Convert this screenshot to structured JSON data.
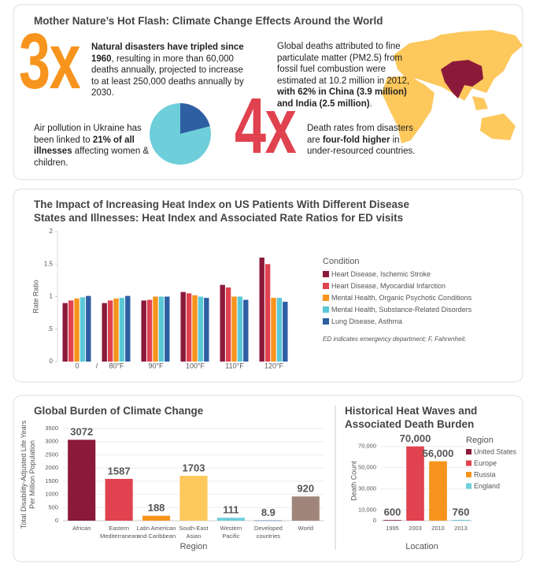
{
  "header": {
    "title": "Mother Nature’s Hot Flash: Climate Change Effects Around the World"
  },
  "stats": [
    {
      "big": "3x",
      "color": "#f7941d",
      "parts": [
        {
          "text": "Natural disasters have tripled since 1960",
          "bold": true
        },
        {
          "text": ", resulting in more than 60,000 deaths annually, projected to increase to at least 250,000 deaths annually by 2030."
        }
      ]
    },
    {
      "parts": [
        {
          "text": "Global deaths attributed to fine particulate matter (PM2.5) from fossil fuel combustion were estimated at 10.2 million in 2012, "
        },
        {
          "text": "with 62% in China (3.9 million) and India (2.5 million)",
          "bold": true
        },
        {
          "text": "."
        }
      ]
    },
    {
      "parts": [
        {
          "text": "Air pollution in Ukraine has been linked to "
        },
        {
          "text": "21% of all illnesses",
          "bold": true
        },
        {
          "text": " affecting women & children."
        }
      ]
    },
    {
      "big": "4x",
      "color": "#e0424f",
      "parts": [
        {
          "text": "Death rates from disasters are "
        },
        {
          "text": "four-fold higher",
          "bold": true
        },
        {
          "text": " in under-resourced countries."
        }
      ]
    }
  ],
  "chart_data": [
    {
      "type": "pie",
      "values": [
        21,
        79
      ],
      "colors": [
        "#2e5fa3",
        "#6ecfdb"
      ]
    },
    {
      "type": "grouped_bar",
      "title": "The Impact of Increasing Heat Index on US Patients With Different Disease States and Illnesses: Heat Index and Associated Rate Ratios for ED visits",
      "y_label": "Rate Ratio",
      "categories": [
        "0",
        "80°F",
        "90°F",
        "100°F",
        "110°F",
        "120°F"
      ],
      "x_break_label": "/",
      "ylim": [
        0,
        2
      ],
      "yticks": [
        0,
        {
          "value": 0.5,
          "label": ".5"
        },
        1,
        1.5,
        2
      ],
      "legend_title": "Condition",
      "series": [
        {
          "name": "Heart Disease, Ischemic Stroke",
          "color": "#8b1a3a",
          "values": [
            0.9,
            0.9,
            0.94,
            1.07,
            1.18,
            1.6
          ]
        },
        {
          "name": "Heart Disease, Myocardial Infarction",
          "color": "#e0424f",
          "values": [
            0.94,
            0.94,
            0.95,
            1.05,
            1.14,
            1.5
          ]
        },
        {
          "name": "Mental Health, Organic Psychotic Conditions",
          "color": "#f7941d",
          "values": [
            0.97,
            0.97,
            1.0,
            1.02,
            1.0,
            0.98
          ]
        },
        {
          "name": "Mental Health, Substance-Related Disorders",
          "color": "#5bc8d6",
          "values": [
            0.99,
            0.98,
            1.0,
            1.0,
            1.0,
            0.98
          ]
        },
        {
          "name": "Lung Disease, Asthma",
          "color": "#2e5fa3",
          "values": [
            1.01,
            1.01,
            1.0,
            0.98,
            0.95,
            0.92
          ]
        }
      ],
      "note": "ED indicates emergency department; F, Fahrenheit."
    },
    {
      "type": "bar",
      "title": "Global Burden of Climate Change",
      "y_label": [
        "Total Disability-Adjusted Life Years",
        "Per Million Population"
      ],
      "x_label": "Region",
      "categories": [
        [
          "African"
        ],
        [
          "Eastern",
          "Mediterranean"
        ],
        [
          "Latin American",
          "and Caribbean"
        ],
        [
          "South-East",
          "Asian"
        ],
        [
          "Western",
          "Pacific"
        ],
        [
          "Developed",
          "countries"
        ],
        [
          "World"
        ]
      ],
      "values": [
        3072,
        1587,
        188,
        1703,
        111,
        8.9,
        920
      ],
      "colors": [
        "#8b1a3a",
        "#e0424f",
        "#f7941d",
        "#fdc85c",
        "#6ecfdb",
        "#2e5fa3",
        "#a0867a"
      ],
      "ylim": [
        0,
        3500
      ],
      "yticks": [
        0,
        500,
        1000,
        1500,
        2000,
        2500,
        3000,
        3500
      ],
      "grid": true
    },
    {
      "type": "bar",
      "title": "Historical Heat Waves and Associated Death Burden",
      "y_label": [
        "Death Count"
      ],
      "x_label": "Location",
      "categories": [
        [
          "1995"
        ],
        [
          "2003"
        ],
        [
          "2010"
        ],
        [
          "2013"
        ]
      ],
      "values": [
        600,
        70000,
        56000,
        760
      ],
      "value_labels": [
        "600",
        "70,000",
        "56,000",
        "760"
      ],
      "colors": [
        "#8b1a3a",
        "#e0424f",
        "#f7941d",
        "#6ecfdb"
      ],
      "ylim": [
        0,
        75000
      ],
      "yticks": [
        0,
        {
          "value": 10000,
          "label": "10,000"
        },
        {
          "value": 30000,
          "label": "30,000"
        },
        {
          "value": 50000,
          "label": "50,000"
        },
        {
          "value": 70000,
          "label": "70,000"
        }
      ],
      "grid": true,
      "legend": {
        "title": "Region",
        "entries": [
          "United States",
          "Europe",
          "Russia",
          "England"
        ]
      }
    }
  ]
}
